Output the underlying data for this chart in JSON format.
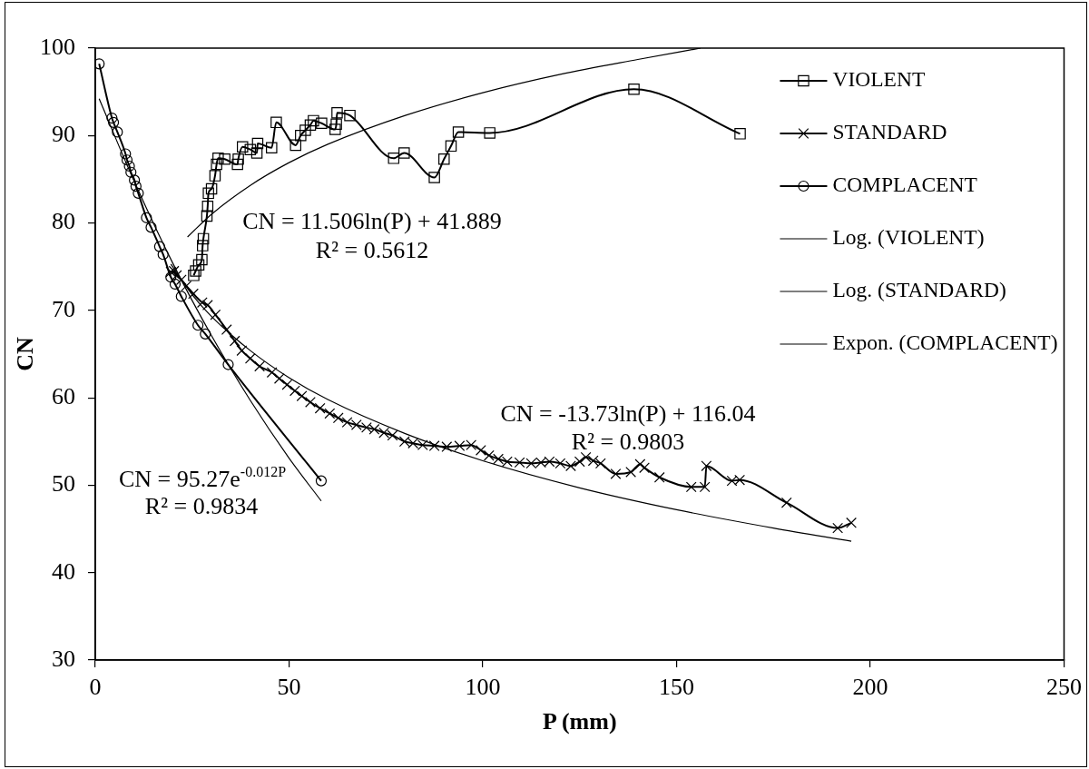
{
  "chart_data": {
    "type": "line",
    "xlabel": "P (mm)",
    "ylabel": "CN",
    "xlim": [
      0,
      250
    ],
    "ylim": [
      30,
      100
    ],
    "xticks": [
      0,
      50,
      100,
      150,
      200,
      250
    ],
    "yticks": [
      30,
      40,
      50,
      60,
      70,
      80,
      90,
      100
    ],
    "legend": "top right",
    "annotations": [
      "CN = 11.506ln(P) + 41.889",
      "R² = 0.5612",
      "CN = -13.73ln(P) + 116.04",
      "R² = 0.9803",
      "CN = 95.27e$^{-0.012P}$",
      "R² = 0.9834"
    ],
    "series": [
      {
        "name": "VIOLENT",
        "color": "#000000",
        "marker": "square",
        "x": [
          25.4,
          25.9,
          26.7,
          27.5,
          27.7,
          27.9,
          28.8,
          29.0,
          29.2,
          30.0,
          30.9,
          31.3,
          31.7,
          33.4,
          36.7,
          36.9,
          38.0,
          40.0,
          41.7,
          41.9,
          45.5,
          46.7,
          51.7,
          53.0,
          54.2,
          55.5,
          56.3,
          58.4,
          61.9,
          62.2,
          62.4,
          65.7,
          77.0,
          79.7,
          87.5,
          90.0,
          91.8,
          93.7,
          101.8,
          139.0,
          166.4
        ],
        "values": [
          74.0,
          74.5,
          75.2,
          75.8,
          77.4,
          78.2,
          80.8,
          81.9,
          83.4,
          83.9,
          85.4,
          86.7,
          87.4,
          87.3,
          86.7,
          87.3,
          88.7,
          88.4,
          88.0,
          89.1,
          88.6,
          91.5,
          88.9,
          90.0,
          90.6,
          91.2,
          91.7,
          91.4,
          90.7,
          91.3,
          92.6,
          92.3,
          87.4,
          88.0,
          85.2,
          87.3,
          88.8,
          90.4,
          90.3,
          95.3,
          90.2
        ]
      },
      {
        "name": "STANDARD",
        "color": "#000000",
        "marker": "cross",
        "x": [
          19.5,
          20.3,
          21.0,
          22.2,
          23.5,
          25.3,
          27.6,
          29.0,
          31.0,
          33.9,
          36.0,
          37.8,
          40.0,
          42.4,
          45.6,
          47.5,
          49.5,
          51.5,
          53.3,
          55.5,
          58.0,
          60.5,
          62.7,
          65.0,
          67.4,
          70.0,
          72.0,
          74.5,
          76.7,
          79.8,
          82.0,
          84.5,
          87.5,
          90.7,
          94.0,
          97.0,
          99.5,
          101.6,
          104.0,
          106.3,
          109.5,
          112.5,
          115.0,
          117.2,
          120.0,
          122.7,
          125.0,
          126.6,
          128.5,
          130.4,
          134.3,
          138.2,
          140.6,
          141.7,
          145.6,
          153.8,
          157.3,
          157.7,
          164.3,
          166.3,
          178.4,
          191.6,
          195.1
        ],
        "values": [
          74.4,
          74.5,
          74.0,
          73.5,
          72.8,
          71.9,
          70.9,
          70.6,
          69.5,
          67.8,
          66.5,
          65.4,
          64.5,
          63.6,
          62.9,
          62.2,
          61.5,
          60.8,
          60.2,
          59.5,
          58.8,
          58.2,
          57.7,
          57.2,
          56.9,
          56.6,
          56.4,
          56.0,
          55.7,
          55.0,
          54.8,
          54.6,
          54.5,
          54.4,
          54.5,
          54.6,
          54.0,
          53.4,
          53.0,
          52.7,
          52.6,
          52.5,
          52.6,
          52.7,
          52.5,
          52.2,
          52.7,
          53.2,
          52.8,
          52.5,
          51.3,
          51.5,
          52.4,
          52.0,
          50.9,
          49.8,
          49.8,
          52.2,
          50.5,
          50.6,
          48.0,
          45.1,
          45.7
        ]
      },
      {
        "name": "COMPLACENT",
        "color": "#000000",
        "marker": "circle",
        "x": [
          1.0,
          4.3,
          4.7,
          5.7,
          7.8,
          8.2,
          8.8,
          9.2,
          10.1,
          10.5,
          11.1,
          13.2,
          14.4,
          16.6,
          17.5,
          19.5,
          20.6,
          22.2,
          26.5,
          28.4,
          34.3,
          58.3
        ],
        "values": [
          98.2,
          92.0,
          91.5,
          90.4,
          87.9,
          87.2,
          86.5,
          85.8,
          84.9,
          84.2,
          83.4,
          80.6,
          79.5,
          77.3,
          76.4,
          73.8,
          73.0,
          71.6,
          68.3,
          67.3,
          63.8,
          50.5
        ]
      },
      {
        "name": "Log. (VIOLENT)",
        "type": "line",
        "color": "#000000",
        "marker": "none",
        "x": [
          23.8,
          30,
          40,
          50,
          60,
          80,
          100,
          120,
          140,
          156.2
        ],
        "values": [
          78.4,
          81.0,
          84.3,
          86.9,
          89.0,
          92.3,
          94.9,
          97.0,
          98.7,
          100.0
        ]
      },
      {
        "name": "Log. (STANDARD)",
        "type": "line",
        "color": "#000000",
        "marker": "none",
        "x": [
          19.5,
          25,
          30,
          40,
          50,
          60,
          80,
          100,
          125,
          150,
          175,
          195.1
        ],
        "values": [
          75.3,
          71.8,
          69.3,
          65.4,
          62.3,
          59.8,
          55.9,
          52.8,
          49.7,
          47.2,
          45.1,
          43.6
        ]
      },
      {
        "name": "Expon. (COMPLACENT)",
        "type": "line",
        "color": "#000000",
        "marker": "none",
        "x": [
          1.0,
          10,
          20,
          30,
          40,
          50,
          58.3
        ],
        "values": [
          94.2,
          84.8,
          75.4,
          67.1,
          59.7,
          53.1,
          48.2
        ]
      }
    ]
  }
}
